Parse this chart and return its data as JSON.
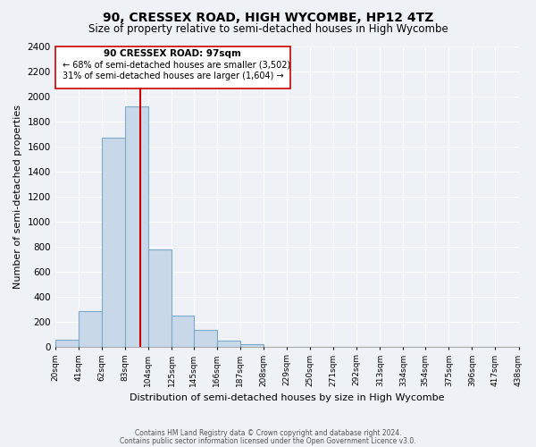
{
  "title": "90, CRESSEX ROAD, HIGH WYCOMBE, HP12 4TZ",
  "subtitle": "Size of property relative to semi-detached houses in High Wycombe",
  "xlabel": "Distribution of semi-detached houses by size in High Wycombe",
  "ylabel": "Number of semi-detached properties",
  "footnote1": "Contains HM Land Registry data © Crown copyright and database right 2024.",
  "footnote2": "Contains public sector information licensed under the Open Government Licence v3.0.",
  "bar_edges": [
    20,
    41,
    62,
    83,
    104,
    125,
    145,
    166,
    187,
    208,
    229,
    250,
    271,
    292,
    313,
    334,
    354,
    375,
    396,
    417,
    438
  ],
  "bar_heights": [
    55,
    280,
    1670,
    1920,
    775,
    250,
    130,
    45,
    20,
    0,
    0,
    0,
    0,
    0,
    0,
    0,
    0,
    0,
    0,
    0
  ],
  "tick_labels": [
    "20sqm",
    "41sqm",
    "62sqm",
    "83sqm",
    "104sqm",
    "125sqm",
    "145sqm",
    "166sqm",
    "187sqm",
    "208sqm",
    "229sqm",
    "250sqm",
    "271sqm",
    "292sqm",
    "313sqm",
    "334sqm",
    "354sqm",
    "375sqm",
    "396sqm",
    "417sqm",
    "438sqm"
  ],
  "property_line_x": 97,
  "ylim": [
    0,
    2400
  ],
  "yticks": [
    0,
    200,
    400,
    600,
    800,
    1000,
    1200,
    1400,
    1600,
    1800,
    2000,
    2200,
    2400
  ],
  "bar_color": "#c8d8e8",
  "bar_edge_color": "#7aaac8",
  "line_color": "#cc0000",
  "box_color": "#ffffff",
  "box_edge_color": "#cc0000",
  "annotation_title": "90 CRESSEX ROAD: 97sqm",
  "annotation_line1": "← 68% of semi-detached houses are smaller (3,502)",
  "annotation_line2": "31% of semi-detached houses are larger (1,604) →",
  "bg_color": "#eef2f6",
  "grid_color": "#ffffff",
  "title_fontsize": 10,
  "subtitle_fontsize": 8.5,
  "xlabel_fontsize": 8,
  "ylabel_fontsize": 8
}
